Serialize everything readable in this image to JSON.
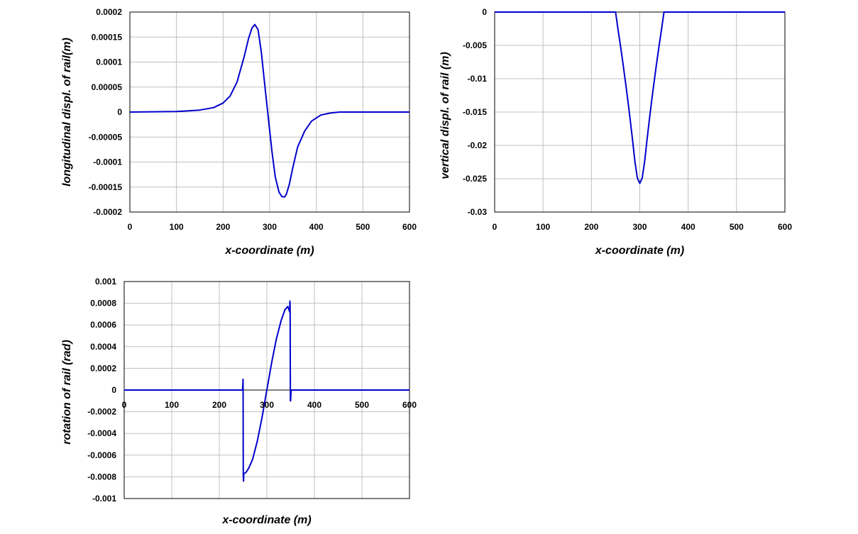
{
  "chart_data": [
    {
      "id": "longitudinal",
      "type": "line",
      "xlabel": "x-coordinate (m)",
      "ylabel": "longitudinal displ. of rail(m)",
      "xlim": [
        0,
        600
      ],
      "ylim": [
        -0.0002,
        0.0002
      ],
      "xticks": [
        0,
        100,
        200,
        300,
        400,
        500,
        600
      ],
      "yticks": [
        0.0002,
        0.00015,
        0.0001,
        5e-05,
        0,
        -5e-05,
        -0.0001,
        -0.00015,
        -0.0002
      ],
      "xtick_labels": [
        "0",
        "100",
        "200",
        "300",
        "400",
        "500",
        "600"
      ],
      "ytick_labels": [
        "0.0002",
        "0.00015",
        "0.0001",
        "0.00005",
        "0",
        "-0.00005",
        "-0.0001",
        "-0.00015",
        "-0.0002"
      ],
      "grid": true,
      "series": [
        {
          "color": "#0000cc",
          "x": [
            0,
            100,
            150,
            180,
            200,
            215,
            230,
            245,
            255,
            262,
            268,
            275,
            282,
            290,
            298,
            305,
            312,
            320,
            326,
            332,
            336,
            342,
            350,
            360,
            375,
            390,
            410,
            430,
            450,
            470,
            500,
            550,
            600
          ],
          "y": [
            0,
            1e-06,
            4e-06,
            9e-06,
            1.8e-05,
            3.2e-05,
            6e-05,
            0.00011,
            0.000148,
            0.000168,
            0.000175,
            0.000165,
            0.00012,
            5e-05,
            -2e-05,
            -8e-05,
            -0.00013,
            -0.00016,
            -0.000169,
            -0.00017,
            -0.000164,
            -0.000145,
            -0.00011,
            -7e-05,
            -3.8e-05,
            -1.8e-05,
            -6e-06,
            -2e-06,
            0,
            0,
            0,
            0,
            0
          ]
        }
      ]
    },
    {
      "id": "vertical",
      "type": "line",
      "xlabel": "x-coordinate (m)",
      "ylabel": "vertical displ. of rail (m)",
      "xlim": [
        0,
        600
      ],
      "ylim": [
        -0.03,
        0
      ],
      "xticks": [
        0,
        100,
        200,
        300,
        400,
        500,
        600
      ],
      "yticks": [
        0,
        -0.005,
        -0.01,
        -0.015,
        -0.02,
        -0.025,
        -0.03
      ],
      "xtick_labels": [
        "0",
        "100",
        "200",
        "300",
        "400",
        "500",
        "600"
      ],
      "ytick_labels": [
        "0",
        "-0.005",
        "-0.01",
        "-0.015",
        "-0.02",
        "-0.025",
        "-0.03"
      ],
      "grid": true,
      "series": [
        {
          "color": "#0000cc",
          "x": [
            0,
            250,
            255,
            260,
            265,
            270,
            275,
            280,
            285,
            290,
            295,
            300,
            305,
            310,
            315,
            320,
            325,
            330,
            335,
            340,
            345,
            350,
            600
          ],
          "y": [
            0,
            0,
            -0.00257,
            -0.00498,
            -0.00754,
            -0.01024,
            -0.01308,
            -0.01606,
            -0.01919,
            -0.02246,
            -0.0249,
            -0.0257,
            -0.0249,
            -0.02246,
            -0.01919,
            -0.01606,
            -0.01308,
            -0.01024,
            -0.00754,
            -0.00498,
            -0.00257,
            0,
            0
          ]
        }
      ]
    },
    {
      "id": "rotation",
      "type": "line",
      "xlabel": "x-coordinate (m)",
      "ylabel": "rotation of rail (rad)",
      "xlim": [
        0,
        600
      ],
      "ylim": [
        -0.001,
        0.001
      ],
      "xticks": [
        0,
        100,
        200,
        300,
        400,
        500,
        600
      ],
      "yticks": [
        0.001,
        0.0008,
        0.0006,
        0.0004,
        0.0002,
        0,
        -0.0002,
        -0.0004,
        -0.0006,
        -0.0008,
        -0.001
      ],
      "xtick_labels": [
        "0",
        "100",
        "200",
        "300",
        "400",
        "500",
        "600"
      ],
      "ytick_labels": [
        "0.001",
        "0.0008",
        "0.0006",
        "0.0004",
        "0.0002",
        "0",
        "-0.0002",
        "-0.0004",
        "-0.0006",
        "-0.0008",
        "-0.001"
      ],
      "grid": true,
      "series": [
        {
          "color": "#0000cc",
          "x": [
            0,
            249,
            250,
            250.5,
            251,
            251.5,
            252,
            256,
            262,
            270,
            280,
            290,
            300,
            310,
            320,
            330,
            338,
            344,
            348,
            348.5,
            349,
            349.5,
            350,
            351,
            600
          ],
          "y": [
            0,
            0,
            0.0001,
            -0.0008,
            -0.00084,
            -0.00077,
            -0.00077,
            -0.00076,
            -0.00072,
            -0.00064,
            -0.00047,
            -0.00025,
            0,
            0.00025,
            0.00047,
            0.00064,
            0.00074,
            0.00077,
            0.00072,
            0.00082,
            0.00078,
            -0.0001,
            -0.0001,
            0,
            0
          ]
        }
      ]
    }
  ]
}
